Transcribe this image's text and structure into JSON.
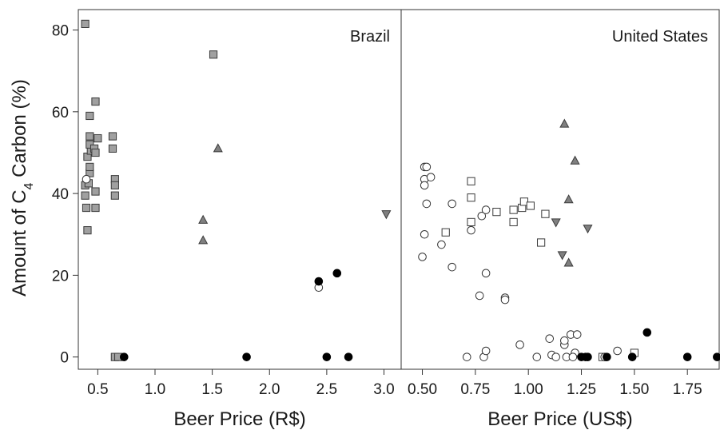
{
  "chart_data": {
    "type": "scatter",
    "ylabel_prefix": "Amount of C",
    "ylabel_subscript": "4",
    "ylabel_suffix": " Carbon (%)",
    "ylim": [
      -3,
      85
    ],
    "yticks": [
      0,
      20,
      40,
      60,
      80
    ],
    "grid": false,
    "panels": [
      {
        "title": "Brazil",
        "xlabel": "Beer Price (R$)",
        "xlim": [
          0.33,
          3.15
        ],
        "xticks": [
          0.5,
          1.0,
          1.5,
          2.0,
          2.5,
          3.0
        ],
        "xtick_labels": [
          "0.5",
          "1.0",
          "1.5",
          "2.0",
          "2.5",
          "3.0"
        ],
        "series": [
          {
            "marker": "square",
            "fill": "#a0a0a0",
            "points": [
              [
                0.39,
                81.5
              ],
              [
                0.41,
                31
              ],
              [
                0.4,
                36.5
              ],
              [
                0.39,
                39.5
              ],
              [
                0.39,
                42
              ],
              [
                0.42,
                42.5
              ],
              [
                0.43,
                45
              ],
              [
                0.43,
                46.5
              ],
              [
                0.41,
                49
              ],
              [
                0.44,
                50.5
              ],
              [
                0.43,
                52
              ],
              [
                0.43,
                54
              ],
              [
                0.47,
                51
              ],
              [
                0.48,
                50
              ],
              [
                0.5,
                53.5
              ],
              [
                0.43,
                59
              ],
              [
                0.48,
                62.5
              ],
              [
                0.48,
                40.5
              ],
              [
                0.48,
                36.5
              ],
              [
                0.63,
                54
              ],
              [
                0.63,
                51
              ],
              [
                0.65,
                43.5
              ],
              [
                0.65,
                42
              ],
              [
                0.65,
                39.5
              ],
              [
                0.65,
                0
              ],
              [
                0.68,
                0
              ],
              [
                1.51,
                74
              ]
            ]
          },
          {
            "marker": "triangle-up",
            "fill": "#808080",
            "points": [
              [
                1.42,
                33.5
              ],
              [
                1.42,
                28.5
              ],
              [
                1.55,
                51
              ]
            ]
          },
          {
            "marker": "triangle-down",
            "fill": "#808080",
            "points": [
              [
                3.02,
                35
              ]
            ]
          },
          {
            "marker": "circle-open",
            "fill": "#ffffff",
            "points": [
              [
                0.4,
                43.5
              ],
              [
                2.43,
                17
              ]
            ]
          },
          {
            "marker": "circle-filled",
            "fill": "#000000",
            "points": [
              [
                0.73,
                0
              ],
              [
                1.8,
                0
              ],
              [
                2.43,
                18.5
              ],
              [
                2.5,
                0
              ],
              [
                2.59,
                20.5
              ],
              [
                2.69,
                0
              ]
            ]
          }
        ]
      },
      {
        "title": "United States",
        "xlabel": "Beer Price (US$)",
        "xlim": [
          0.4,
          1.9
        ],
        "xticks": [
          0.5,
          0.75,
          1.0,
          1.25,
          1.5,
          1.75
        ],
        "xtick_labels": [
          "0.50",
          "0.75",
          "1.00",
          "1.25",
          "1.50",
          "1.75"
        ],
        "series": [
          {
            "marker": "square-open",
            "fill": "#ffffff",
            "points": [
              [
                0.61,
                30.5
              ],
              [
                0.73,
                33
              ],
              [
                0.73,
                39
              ],
              [
                0.73,
                43
              ],
              [
                0.85,
                35.5
              ],
              [
                0.93,
                33
              ],
              [
                0.93,
                36
              ],
              [
                0.97,
                36.5
              ],
              [
                0.98,
                38
              ],
              [
                1.01,
                37
              ],
              [
                1.06,
                28
              ],
              [
                1.08,
                35
              ],
              [
                1.35,
                0
              ],
              [
                1.5,
                1
              ]
            ]
          },
          {
            "marker": "triangle-up",
            "fill": "#808080",
            "points": [
              [
                1.17,
                57
              ],
              [
                1.22,
                48
              ],
              [
                1.19,
                38.5
              ],
              [
                1.19,
                23
              ]
            ]
          },
          {
            "marker": "triangle-down",
            "fill": "#808080",
            "points": [
              [
                1.13,
                33
              ],
              [
                1.16,
                25
              ],
              [
                1.28,
                31.5
              ]
            ]
          },
          {
            "marker": "circle-open",
            "fill": "#ffffff",
            "points": [
              [
                0.51,
                46.5
              ],
              [
                0.52,
                46.5
              ],
              [
                0.51,
                43.5
              ],
              [
                0.54,
                44
              ],
              [
                0.51,
                42
              ],
              [
                0.52,
                37.5
              ],
              [
                0.51,
                30
              ],
              [
                0.5,
                24.5
              ],
              [
                0.59,
                27.5
              ],
              [
                0.64,
                37.5
              ],
              [
                0.64,
                22
              ],
              [
                0.73,
                31
              ],
              [
                0.78,
                34.5
              ],
              [
                0.8,
                36
              ],
              [
                0.77,
                15
              ],
              [
                0.8,
                20.5
              ],
              [
                0.89,
                14.5
              ],
              [
                0.89,
                14
              ],
              [
                0.71,
                0
              ],
              [
                0.79,
                0
              ],
              [
                0.8,
                1.5
              ],
              [
                0.96,
                3
              ],
              [
                1.04,
                0
              ],
              [
                1.1,
                4.5
              ],
              [
                1.11,
                0.5
              ],
              [
                1.13,
                0
              ],
              [
                1.17,
                3
              ],
              [
                1.17,
                4
              ],
              [
                1.18,
                0
              ],
              [
                1.2,
                5.5
              ],
              [
                1.23,
                5.5
              ],
              [
                1.22,
                1
              ],
              [
                1.21,
                0
              ],
              [
                1.36,
                0
              ],
              [
                1.42,
                1.5
              ]
            ]
          },
          {
            "marker": "circle-filled",
            "fill": "#000000",
            "points": [
              [
                1.25,
                0
              ],
              [
                1.27,
                0
              ],
              [
                1.28,
                0
              ],
              [
                1.37,
                0
              ],
              [
                1.49,
                0
              ],
              [
                1.56,
                6
              ],
              [
                1.75,
                0
              ],
              [
                1.89,
                0
              ]
            ]
          }
        ]
      }
    ]
  }
}
